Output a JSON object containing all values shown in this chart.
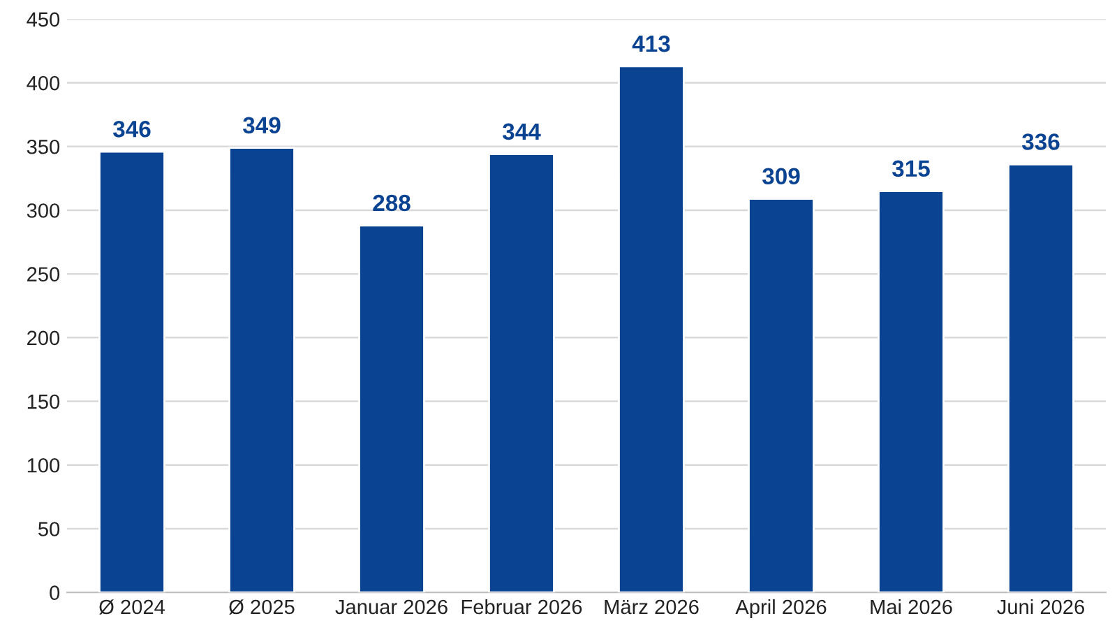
{
  "chart_data": {
    "type": "bar",
    "categories": [
      "Ø 2024",
      "Ø 2025",
      "Januar 2026",
      "Februar 2026",
      "März 2026",
      "April 2026",
      "Mai 2026",
      "Juni 2026"
    ],
    "values": [
      346,
      349,
      288,
      344,
      413,
      309,
      315,
      336
    ],
    "color": "#0b4393",
    "ylim": [
      0,
      450
    ],
    "yticks": [
      0,
      50,
      100,
      150,
      200,
      250,
      300,
      350,
      400,
      450
    ],
    "grid": "y",
    "data_labels": true
  }
}
